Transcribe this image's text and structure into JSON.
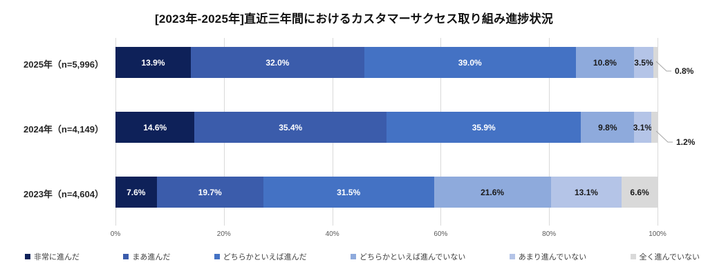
{
  "title": "[2023年-2025年]直近三年間におけるカスタマーサクセス取り組み進捗状況",
  "chart_data": {
    "type": "bar",
    "stacked": true,
    "orientation": "horizontal",
    "title": "[2023年-2025年]直近三年間におけるカスタマーサクセス取り組み進捗状況",
    "categories": [
      "2025年（n=5,996）",
      "2024年（n=4,149）",
      "2023年（n=4,604）"
    ],
    "series": [
      {
        "name": "非常に進んだ",
        "color": "#0e2159",
        "values": [
          13.9,
          14.6,
          7.6
        ]
      },
      {
        "name": "まあ進んだ",
        "color": "#3b5cab",
        "values": [
          32.0,
          35.4,
          19.7
        ]
      },
      {
        "name": "どちらかといえば進んだ",
        "color": "#4472c4",
        "values": [
          39.0,
          35.9,
          31.5
        ]
      },
      {
        "name": "どちらかといえば進んでいない",
        "color": "#8eaadc",
        "values": [
          10.8,
          9.8,
          21.6
        ]
      },
      {
        "name": "あまり進んでいない",
        "color": "#b4c4e7",
        "values": [
          3.5,
          3.1,
          13.1
        ]
      },
      {
        "name": "全く進んでいない",
        "color": "#d9d9d9",
        "values": [
          0.8,
          1.2,
          6.6
        ]
      }
    ],
    "value_label_suffix": "%",
    "callouts": [
      {
        "row": 0,
        "series": 5,
        "label": "0.8%"
      },
      {
        "row": 1,
        "series": 5,
        "label": "1.2%"
      }
    ],
    "x_ticks": [
      "0%",
      "20%",
      "40%",
      "60%",
      "80%",
      "100%"
    ],
    "xlim": [
      0,
      100
    ],
    "grid": "vertical",
    "gridline_color": "#d9d9d9",
    "leader_line_color": "#a6a6a6",
    "legend_position": "bottom",
    "label_text_light": "#ffffff",
    "label_text_dark": "#1a1a1a"
  }
}
